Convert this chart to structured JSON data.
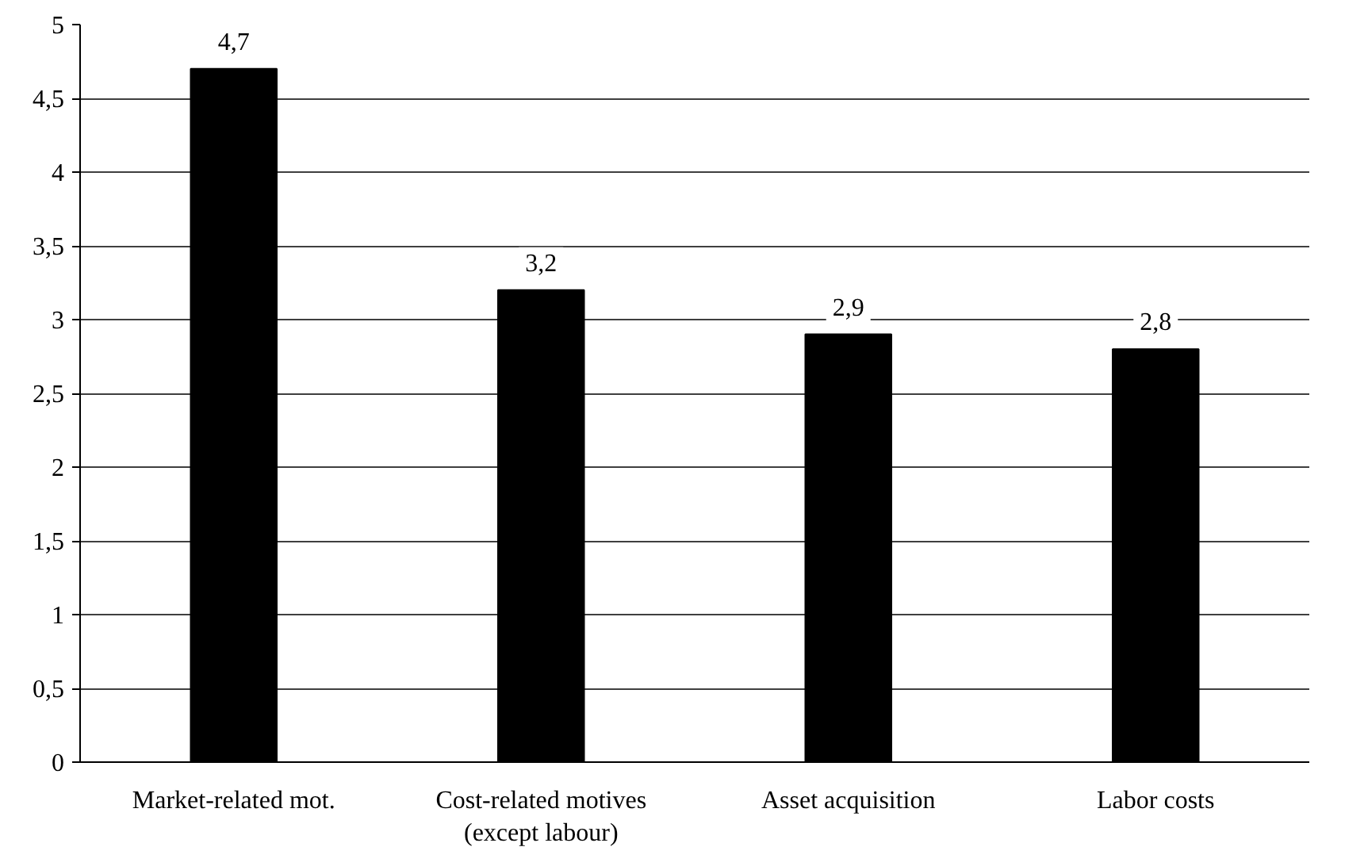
{
  "chart_data": {
    "type": "bar",
    "categories": [
      "Market-related mot.",
      "Cost-related motives\n(except labour)",
      "Asset acquisition",
      "Labor costs"
    ],
    "values": [
      4.7,
      3.2,
      2.9,
      2.8
    ],
    "value_labels": [
      "4,7",
      "3,2",
      "2,9",
      "2,8"
    ],
    "color": "#000000",
    "ylim": [
      0,
      5
    ],
    "yticks": [
      0,
      {
        "value": 0.5,
        "label": "0,5"
      },
      1,
      {
        "value": 1.5,
        "label": "1,5"
      },
      2,
      {
        "value": 2.5,
        "label": "2,5"
      },
      3,
      {
        "value": 3.5,
        "label": "3,5"
      },
      4,
      {
        "value": 4.5,
        "label": "4,5"
      },
      5
    ],
    "grid": "y"
  }
}
